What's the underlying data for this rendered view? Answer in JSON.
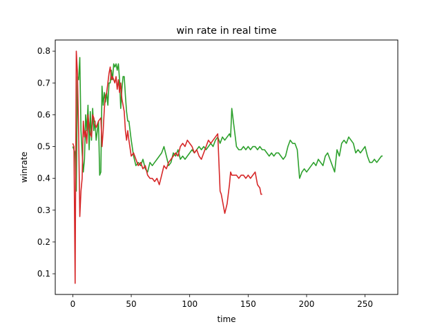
{
  "chart_data": {
    "type": "line",
    "title": "win rate in real time",
    "xlabel": "time",
    "ylabel": "winrate",
    "xlim": [
      -15,
      278
    ],
    "ylim": [
      0.035,
      0.835
    ],
    "xticks": [
      0,
      50,
      100,
      150,
      200,
      250
    ],
    "yticks": [
      0.1,
      0.2,
      0.3,
      0.4,
      0.5,
      0.6,
      0.7,
      0.8
    ],
    "xtick_labels": [
      "0",
      "50",
      "100",
      "150",
      "200",
      "250"
    ],
    "ytick_labels": [
      "0.1",
      "0.2",
      "0.3",
      "0.4",
      "0.5",
      "0.6",
      "0.7",
      "0.8"
    ],
    "grid": false,
    "legend": "none",
    "series": [
      {
        "color": "#2ca02c",
        "x": [
          0,
          2,
          3,
          4,
          5,
          6,
          7,
          8,
          9,
          10,
          11,
          12,
          13,
          14,
          15,
          16,
          17,
          18,
          19,
          20,
          22,
          23,
          24,
          25,
          26,
          27,
          28,
          29,
          30,
          31,
          32,
          33,
          34,
          35,
          36,
          37,
          38,
          39,
          40,
          41,
          42,
          43,
          44,
          45,
          46,
          47,
          48,
          49,
          50,
          52,
          54,
          56,
          58,
          60,
          62,
          64,
          66,
          68,
          70,
          72,
          74,
          76,
          78,
          80,
          82,
          84,
          86,
          88,
          90,
          92,
          94,
          96,
          98,
          100,
          102,
          104,
          106,
          108,
          110,
          112,
          114,
          116,
          118,
          120,
          122,
          124,
          126,
          128,
          130,
          132,
          134,
          135,
          136,
          138,
          140,
          142,
          144,
          146,
          148,
          150,
          152,
          154,
          156,
          158,
          160,
          162,
          164,
          166,
          168,
          170,
          172,
          174,
          176,
          178,
          180,
          182,
          184,
          186,
          188,
          190,
          192,
          194,
          196,
          198,
          200,
          202,
          204,
          206,
          208,
          210,
          212,
          214,
          216,
          218,
          220,
          222,
          224,
          226,
          228,
          230,
          232,
          234,
          236,
          238,
          240,
          242,
          244,
          246,
          248,
          250,
          252,
          254,
          256,
          258,
          260,
          262,
          264,
          265
        ],
        "y": [
          0.5,
          0.48,
          0.36,
          0.72,
          0.71,
          0.78,
          0.55,
          0.48,
          0.42,
          0.46,
          0.6,
          0.55,
          0.63,
          0.49,
          0.61,
          0.52,
          0.62,
          0.55,
          0.58,
          0.52,
          0.58,
          0.41,
          0.42,
          0.69,
          0.63,
          0.67,
          0.64,
          0.67,
          0.63,
          0.7,
          0.7,
          0.74,
          0.71,
          0.76,
          0.75,
          0.76,
          0.74,
          0.76,
          0.71,
          0.62,
          0.68,
          0.72,
          0.72,
          0.66,
          0.61,
          0.58,
          0.58,
          0.55,
          0.52,
          0.47,
          0.44,
          0.45,
          0.44,
          0.46,
          0.43,
          0.42,
          0.45,
          0.44,
          0.45,
          0.46,
          0.47,
          0.48,
          0.5,
          0.47,
          0.44,
          0.45,
          0.48,
          0.47,
          0.49,
          0.46,
          0.47,
          0.46,
          0.47,
          0.48,
          0.49,
          0.48,
          0.49,
          0.5,
          0.49,
          0.5,
          0.49,
          0.5,
          0.51,
          0.5,
          0.52,
          0.53,
          0.51,
          0.53,
          0.52,
          0.53,
          0.54,
          0.53,
          0.62,
          0.56,
          0.5,
          0.49,
          0.49,
          0.5,
          0.49,
          0.5,
          0.49,
          0.5,
          0.5,
          0.49,
          0.5,
          0.49,
          0.49,
          0.48,
          0.47,
          0.48,
          0.47,
          0.48,
          0.48,
          0.47,
          0.46,
          0.47,
          0.5,
          0.52,
          0.51,
          0.51,
          0.49,
          0.4,
          0.42,
          0.43,
          0.42,
          0.43,
          0.44,
          0.45,
          0.44,
          0.46,
          0.45,
          0.44,
          0.47,
          0.48,
          0.46,
          0.44,
          0.42,
          0.49,
          0.47,
          0.51,
          0.52,
          0.51,
          0.53,
          0.52,
          0.51,
          0.48,
          0.49,
          0.48,
          0.49,
          0.5,
          0.47,
          0.45,
          0.45,
          0.46,
          0.45,
          0.46,
          0.47,
          0.47
        ]
      },
      {
        "color": "#d62728",
        "x": [
          0,
          1,
          2,
          3,
          4,
          5,
          6,
          7,
          8,
          9,
          10,
          11,
          12,
          13,
          14,
          15,
          16,
          17,
          18,
          19,
          20,
          22,
          24,
          25,
          26,
          27,
          28,
          29,
          30,
          31,
          32,
          33,
          34,
          35,
          36,
          37,
          38,
          39,
          40,
          41,
          42,
          43,
          44,
          45,
          46,
          47,
          48,
          50,
          52,
          54,
          56,
          58,
          60,
          62,
          64,
          66,
          68,
          70,
          72,
          74,
          76,
          78,
          80,
          82,
          84,
          86,
          88,
          90,
          92,
          94,
          96,
          98,
          100,
          102,
          104,
          106,
          108,
          110,
          112,
          114,
          116,
          118,
          120,
          122,
          124,
          126,
          127,
          128,
          130,
          132,
          133,
          134,
          135,
          136,
          138,
          140,
          142,
          144,
          146,
          148,
          150,
          152,
          154,
          156,
          158,
          160,
          161,
          162
        ],
        "y": [
          0.51,
          0.5,
          0.07,
          0.8,
          0.73,
          0.54,
          0.28,
          0.36,
          0.4,
          0.58,
          0.53,
          0.55,
          0.51,
          0.6,
          0.56,
          0.54,
          0.53,
          0.6,
          0.59,
          0.57,
          0.56,
          0.58,
          0.59,
          0.5,
          0.55,
          0.62,
          0.66,
          0.67,
          0.7,
          0.73,
          0.75,
          0.71,
          0.72,
          0.71,
          0.7,
          0.72,
          0.68,
          0.71,
          0.67,
          0.7,
          0.65,
          0.63,
          0.61,
          0.55,
          0.52,
          0.55,
          0.52,
          0.47,
          0.48,
          0.46,
          0.44,
          0.45,
          0.43,
          0.44,
          0.41,
          0.4,
          0.4,
          0.39,
          0.4,
          0.38,
          0.41,
          0.44,
          0.43,
          0.45,
          0.46,
          0.47,
          0.48,
          0.47,
          0.5,
          0.51,
          0.5,
          0.52,
          0.51,
          0.5,
          0.48,
          0.49,
          0.47,
          0.46,
          0.48,
          0.5,
          0.52,
          0.51,
          0.52,
          0.53,
          0.54,
          0.36,
          0.35,
          0.33,
          0.29,
          0.32,
          0.35,
          0.38,
          0.42,
          0.41,
          0.41,
          0.41,
          0.4,
          0.41,
          0.41,
          0.4,
          0.41,
          0.4,
          0.41,
          0.42,
          0.38,
          0.37,
          0.35,
          0.35
        ]
      }
    ]
  }
}
